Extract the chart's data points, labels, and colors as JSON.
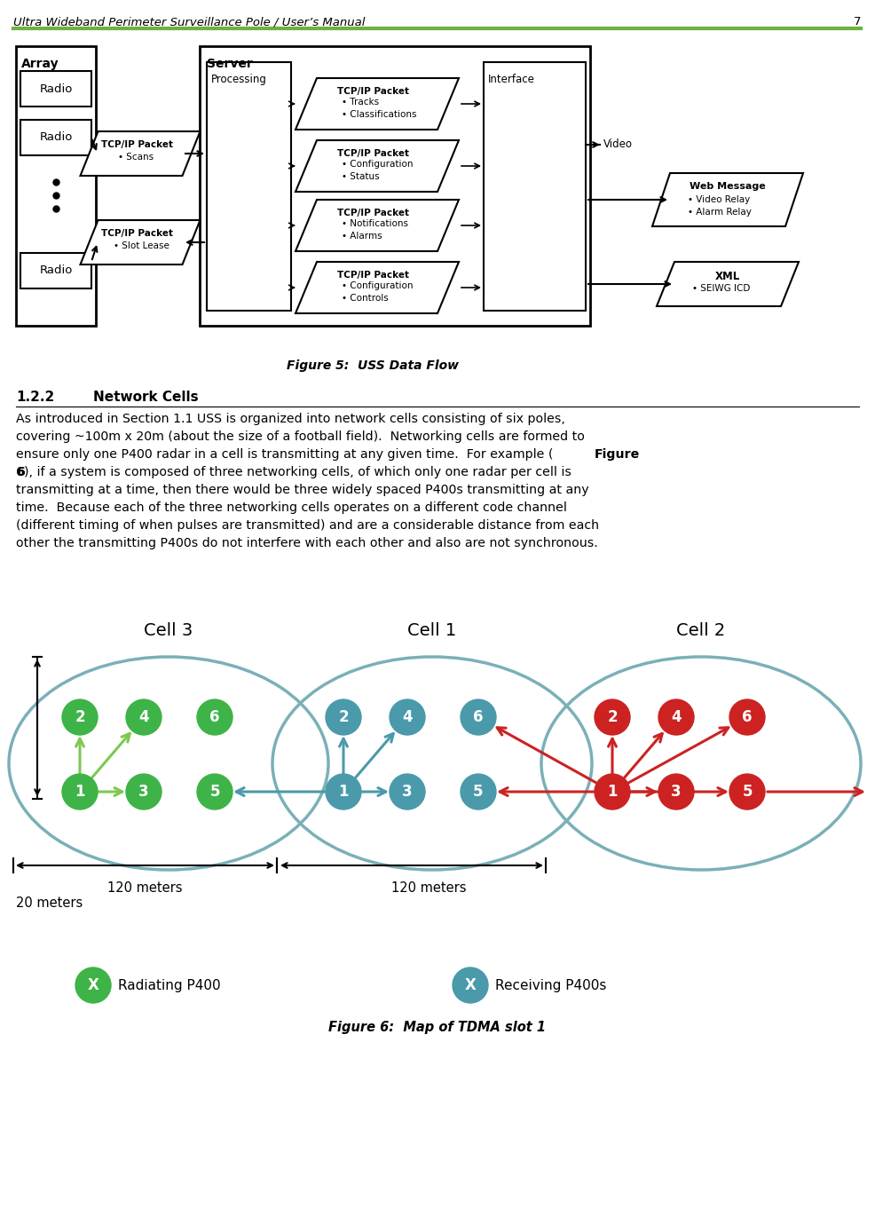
{
  "page_title": "Ultra Wideband Perimeter Surveillance Pole / User’s Manual",
  "page_number": "7",
  "header_line_color": "#6db33f",
  "bg_color": "#ffffff",
  "fig5_caption": "Figure 5:  USS Data Flow",
  "fig6_caption": "Figure 6:  Map of TDMA slot 1",
  "cell3_color": "#3eb348",
  "cell1_color": "#4a9aab",
  "cell2_color": "#cc2222",
  "cell_ellipse_color": "#7ab0b8",
  "arrow_green": "#7ec850",
  "arrow_teal": "#4a9aab",
  "arrow_red": "#cc2222"
}
